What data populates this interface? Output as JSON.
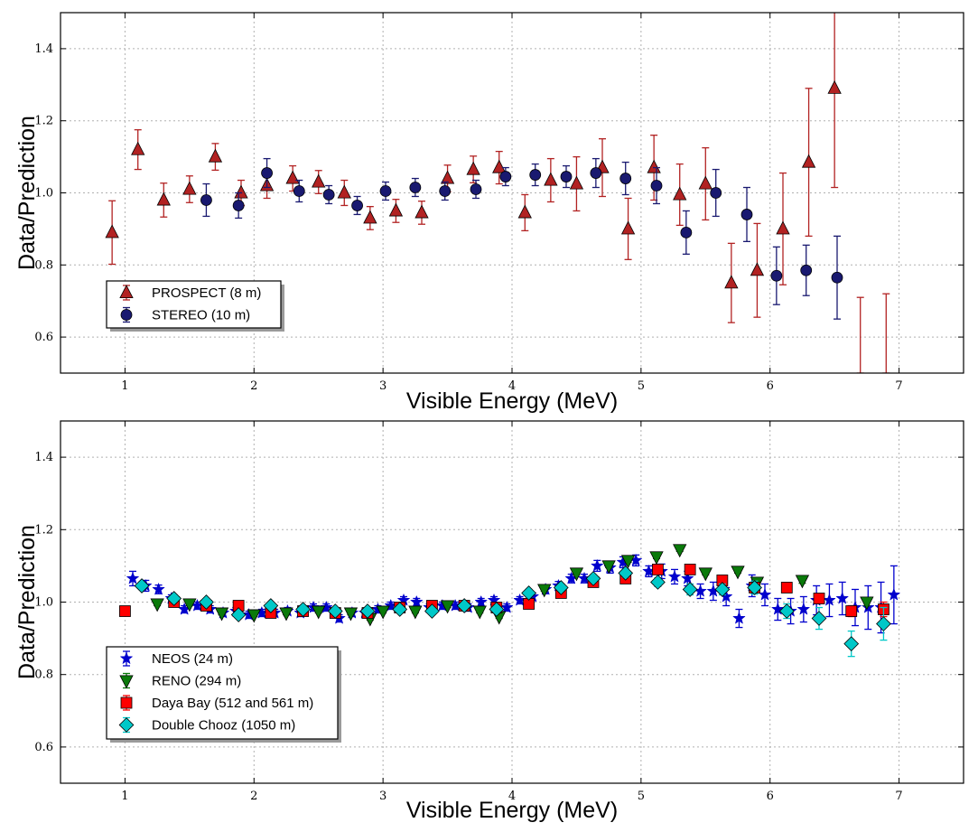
{
  "colors": {
    "prospect": "#b22222",
    "stereo": "#191970",
    "neos": "#0000cd",
    "reno": "#0a7a0a",
    "dayabay": "#ff0000",
    "doublechooz": "#00c8c8"
  },
  "chart_data": [
    {
      "type": "scatter",
      "xlabel": "Visible Energy (MeV)",
      "ylabel": "Data/Prediction",
      "xlim": [
        0.5,
        7.5
      ],
      "ylim": [
        0.5,
        1.5
      ],
      "xticks": [
        "1",
        "2",
        "3",
        "4",
        "5",
        "6",
        "7"
      ],
      "yticks": [
        "0.6",
        "0.8",
        "1.0",
        "1.2",
        "1.4"
      ],
      "grid": true,
      "legend": "lower-left",
      "series": [
        {
          "name": "PROSPECT (8 m)",
          "marker": "triangle-up",
          "color": "#b22222",
          "x": [
            0.9,
            1.1,
            1.3,
            1.5,
            1.7,
            1.9,
            2.1,
            2.3,
            2.5,
            2.7,
            2.9,
            3.1,
            3.3,
            3.5,
            3.7,
            3.9,
            4.1,
            4.3,
            4.5,
            4.7,
            4.9,
            5.1,
            5.3,
            5.5,
            5.7,
            5.9,
            6.1,
            6.3,
            6.5,
            6.7,
            6.9
          ],
          "y": [
            0.89,
            1.12,
            0.98,
            1.01,
            1.1,
            1.0,
            1.02,
            1.04,
            1.03,
            1.0,
            0.93,
            0.95,
            0.945,
            1.04,
            1.065,
            1.07,
            0.945,
            1.035,
            1.025,
            1.07,
            0.9,
            1.07,
            0.995,
            1.025,
            0.75,
            0.785,
            0.9,
            1.085,
            1.29,
            null,
            null
          ],
          "err": [
            0.088,
            0.055,
            0.047,
            0.037,
            0.037,
            0.035,
            0.035,
            0.035,
            0.032,
            0.035,
            0.032,
            0.032,
            0.032,
            0.037,
            0.037,
            0.045,
            0.05,
            0.06,
            0.075,
            0.08,
            0.085,
            0.09,
            0.085,
            0.1,
            0.11,
            0.13,
            0.155,
            0.205,
            0.275,
            0.25,
            0.25
          ],
          "err_low_bound": [
            null,
            null,
            null,
            null,
            null,
            null,
            null,
            null,
            null,
            null,
            null,
            null,
            null,
            null,
            null,
            null,
            null,
            null,
            null,
            null,
            null,
            null,
            null,
            null,
            null,
            null,
            null,
            null,
            null,
            0.5,
            0.5
          ],
          "err_high_bound": [
            null,
            null,
            null,
            null,
            null,
            null,
            null,
            null,
            null,
            null,
            null,
            null,
            null,
            null,
            null,
            null,
            null,
            null,
            null,
            null,
            null,
            null,
            null,
            null,
            null,
            null,
            null,
            null,
            null,
            0.71,
            0.72
          ]
        },
        {
          "name": "STEREO (10 m)",
          "marker": "circle",
          "color": "#191970",
          "x": [
            1.63,
            1.88,
            2.1,
            2.35,
            2.58,
            2.8,
            3.02,
            3.25,
            3.48,
            3.72,
            3.95,
            4.18,
            4.42,
            4.65,
            4.88,
            5.12,
            5.35,
            5.58,
            5.82,
            6.05,
            6.28,
            6.52
          ],
          "y": [
            0.98,
            0.965,
            1.055,
            1.005,
            0.995,
            0.965,
            1.005,
            1.015,
            1.005,
            1.01,
            1.045,
            1.05,
            1.045,
            1.055,
            1.04,
            1.02,
            0.89,
            1.0,
            0.94,
            0.77,
            0.785,
            0.765
          ],
          "err": [
            0.045,
            0.035,
            0.04,
            0.03,
            0.025,
            0.025,
            0.025,
            0.025,
            0.025,
            0.025,
            0.025,
            0.03,
            0.03,
            0.04,
            0.045,
            0.05,
            0.06,
            0.065,
            0.075,
            0.08,
            0.07,
            0.115
          ]
        }
      ]
    },
    {
      "type": "scatter",
      "xlabel": "Visible Energy (MeV)",
      "ylabel": "Data/Prediction",
      "xlim": [
        0.5,
        7.5
      ],
      "ylim": [
        0.5,
        1.5
      ],
      "xticks": [
        "1",
        "2",
        "3",
        "4",
        "5",
        "6",
        "7"
      ],
      "yticks": [
        "0.6",
        "0.8",
        "1.0",
        "1.2",
        "1.4"
      ],
      "grid": true,
      "legend": "lower-left",
      "series": [
        {
          "name": "NEOS (24 m)",
          "marker": "star",
          "color": "#0000cd",
          "x": [
            1.06,
            1.16,
            1.26,
            1.36,
            1.46,
            1.56,
            1.66,
            1.76,
            1.86,
            1.96,
            2.06,
            2.16,
            2.26,
            2.36,
            2.46,
            2.56,
            2.66,
            2.76,
            2.86,
            2.96,
            3.06,
            3.16,
            3.26,
            3.36,
            3.46,
            3.56,
            3.66,
            3.76,
            3.86,
            3.96,
            4.06,
            4.16,
            4.26,
            4.36,
            4.46,
            4.56,
            4.66,
            4.76,
            4.86,
            4.96,
            5.06,
            5.16,
            5.26,
            5.36,
            5.46,
            5.56,
            5.66,
            5.76,
            5.86,
            5.96,
            6.06,
            6.16,
            6.26,
            6.36,
            6.46,
            6.56,
            6.66,
            6.76,
            6.86,
            6.96
          ],
          "y": [
            1.065,
            1.045,
            1.035,
            1.01,
            0.98,
            0.99,
            0.98,
            0.97,
            0.975,
            0.965,
            0.97,
            0.97,
            0.975,
            0.97,
            0.985,
            0.985,
            0.955,
            0.97,
            0.97,
            0.98,
            0.99,
            1.005,
            1.0,
            0.985,
            0.99,
            0.99,
            0.985,
            1.0,
            1.005,
            0.985,
            1.005,
            1.015,
            1.035,
            1.045,
            1.065,
            1.065,
            1.1,
            1.095,
            1.11,
            1.115,
            1.085,
            1.085,
            1.07,
            1.065,
            1.03,
            1.03,
            1.015,
            0.955,
            1.045,
            1.02,
            0.98,
            0.975,
            0.98,
            1.005,
            1.005,
            1.01,
            0.985,
            0.985,
            0.985,
            1.02
          ],
          "err": [
            0.02,
            0.015,
            0.012,
            0.01,
            0.01,
            0.01,
            0.01,
            0.01,
            0.01,
            0.01,
            0.01,
            0.01,
            0.01,
            0.01,
            0.01,
            0.01,
            0.01,
            0.01,
            0.01,
            0.01,
            0.01,
            0.01,
            0.01,
            0.01,
            0.01,
            0.01,
            0.01,
            0.01,
            0.01,
            0.01,
            0.01,
            0.01,
            0.012,
            0.012,
            0.012,
            0.012,
            0.015,
            0.015,
            0.015,
            0.015,
            0.015,
            0.02,
            0.02,
            0.02,
            0.02,
            0.025,
            0.025,
            0.025,
            0.03,
            0.03,
            0.03,
            0.035,
            0.035,
            0.04,
            0.045,
            0.045,
            0.05,
            0.06,
            0.07,
            0.08
          ]
        },
        {
          "name": "RENO (294 m)",
          "marker": "triangle-down",
          "color": "#0a7a0a",
          "x": [
            1.25,
            1.5,
            1.75,
            2.0,
            2.25,
            2.5,
            2.75,
            2.9,
            3.0,
            3.25,
            3.5,
            3.75,
            3.9,
            4.25,
            4.5,
            4.75,
            4.9,
            5.12,
            5.3,
            5.5,
            5.75,
            5.9,
            6.25,
            6.75
          ],
          "y": [
            0.995,
            0.995,
            0.97,
            0.965,
            0.97,
            0.975,
            0.97,
            0.955,
            0.975,
            0.975,
            0.99,
            0.975,
            0.96,
            1.035,
            1.08,
            1.1,
            1.115,
            1.125,
            1.145,
            1.08,
            1.085,
            1.055,
            1.06,
            1.0
          ],
          "err": [
            0.005,
            0.005,
            0.005,
            0.005,
            0.005,
            0.005,
            0.005,
            0.005,
            0.005,
            0.005,
            0.005,
            0.005,
            0.005,
            0.005,
            0.005,
            0.005,
            0.005,
            0.005,
            0.005,
            0.005,
            0.005,
            0.005,
            0.008,
            0.01
          ]
        },
        {
          "name": "Daya Bay (512 and 561 m)",
          "marker": "square",
          "color": "#ff0000",
          "x": [
            1.0,
            1.38,
            1.63,
            1.88,
            2.13,
            2.38,
            2.63,
            2.88,
            3.13,
            3.38,
            3.63,
            3.88,
            4.13,
            4.38,
            4.63,
            4.88,
            5.13,
            5.38,
            5.63,
            5.88,
            6.13,
            6.38,
            6.63,
            6.88
          ],
          "y": [
            0.975,
            1.0,
            0.99,
            0.99,
            0.97,
            0.975,
            0.97,
            0.97,
            0.985,
            0.99,
            0.99,
            0.985,
            0.995,
            1.025,
            1.055,
            1.065,
            1.09,
            1.09,
            1.06,
            1.04,
            1.04,
            1.01,
            0.975,
            0.98
          ],
          "err": [
            0.005,
            0.005,
            0.005,
            0.005,
            0.005,
            0.005,
            0.005,
            0.005,
            0.005,
            0.005,
            0.005,
            0.005,
            0.005,
            0.005,
            0.005,
            0.005,
            0.005,
            0.005,
            0.005,
            0.005,
            0.008,
            0.01,
            0.015,
            0.02
          ]
        },
        {
          "name": "Double Chooz (1050 m)",
          "marker": "diamond",
          "color": "#00c8c8",
          "x": [
            1.13,
            1.38,
            1.63,
            1.88,
            2.13,
            2.38,
            2.63,
            2.88,
            3.13,
            3.38,
            3.63,
            3.88,
            4.13,
            4.38,
            4.63,
            4.88,
            5.13,
            5.38,
            5.63,
            5.88,
            6.13,
            6.38,
            6.63,
            6.88
          ],
          "y": [
            1.045,
            1.01,
            1.0,
            0.965,
            0.99,
            0.98,
            0.975,
            0.975,
            0.98,
            0.975,
            0.99,
            0.98,
            1.025,
            1.04,
            1.065,
            1.08,
            1.055,
            1.035,
            1.035,
            1.04,
            0.975,
            0.955,
            0.885,
            0.94
          ],
          "err": [
            0.01,
            0.01,
            0.008,
            0.008,
            0.008,
            0.008,
            0.008,
            0.008,
            0.008,
            0.008,
            0.008,
            0.008,
            0.01,
            0.01,
            0.01,
            0.012,
            0.012,
            0.015,
            0.015,
            0.018,
            0.02,
            0.03,
            0.035,
            0.045
          ]
        }
      ]
    }
  ]
}
